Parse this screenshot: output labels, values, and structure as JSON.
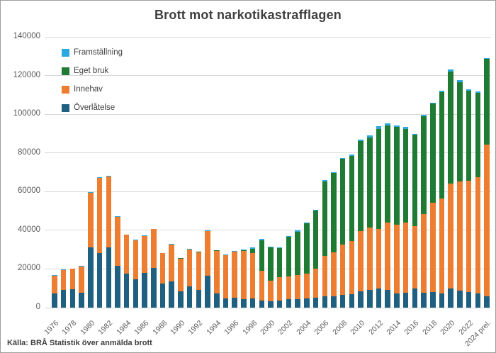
{
  "chart_data": {
    "type": "bar",
    "stacked": true,
    "title": "Brott mot narkotikastrafflagen",
    "source_note": "Källa: BRÅ Statistik över anmälda brott",
    "categories": [
      "1976",
      "1977",
      "1978",
      "1979",
      "1980",
      "1981",
      "1982",
      "1983",
      "1984",
      "1985",
      "1986",
      "1987",
      "1988",
      "1989",
      "1990",
      "1991",
      "1992",
      "1993",
      "1994",
      "1995",
      "1996",
      "1997",
      "1998",
      "1999",
      "2000",
      "2001",
      "2002",
      "2003",
      "2004",
      "2005",
      "2006",
      "2007",
      "2008",
      "2009",
      "2010",
      "2011",
      "2012",
      "2013",
      "2014",
      "2015",
      "2016",
      "2017",
      "2018",
      "2019",
      "2020",
      "2021",
      "2022",
      "2023",
      "2024 prel."
    ],
    "series": [
      {
        "name": "Överlåtelse",
        "color": "#1f5f7f",
        "values": [
          7500,
          9300,
          9700,
          7800,
          31000,
          28200,
          31100,
          21800,
          17600,
          14800,
          18000,
          20700,
          12500,
          13700,
          8400,
          10900,
          9300,
          16400,
          7200,
          4800,
          5000,
          4500,
          4700,
          3800,
          3400,
          3800,
          4500,
          4500,
          4700,
          5000,
          5800,
          6000,
          6500,
          7000,
          8500,
          9000,
          10000,
          9000,
          7200,
          7800,
          9800,
          7800,
          7900,
          7200,
          10000,
          8800,
          8000,
          7200,
          6000
        ]
      },
      {
        "name": "Innehav",
        "color": "#ed7d31",
        "values": [
          9000,
          10300,
          10300,
          13600,
          28300,
          38800,
          36700,
          25300,
          20000,
          20100,
          19200,
          19900,
          15600,
          19000,
          17000,
          19000,
          19400,
          23200,
          22300,
          22300,
          23800,
          24900,
          23400,
          15400,
          10500,
          11900,
          11800,
          12400,
          13000,
          15000,
          20800,
          22500,
          26000,
          27500,
          31000,
          32500,
          30700,
          35000,
          35600,
          36200,
          32500,
          40600,
          46200,
          49100,
          54100,
          56300,
          57700,
          60300,
          78200
        ]
      },
      {
        "name": "Eget bruk",
        "color": "#1f7b34",
        "values": [
          0,
          0,
          0,
          0,
          0,
          0,
          0,
          0,
          0,
          0,
          0,
          0,
          0,
          100,
          100,
          200,
          200,
          100,
          100,
          100,
          100,
          200,
          2500,
          15800,
          17200,
          15200,
          20200,
          22500,
          25900,
          30200,
          38800,
          41200,
          44300,
          44100,
          46500,
          46600,
          51800,
          50200,
          50700,
          48400,
          47000,
          50700,
          51300,
          55200,
          57900,
          51600,
          46500,
          43700,
          44500
        ]
      },
      {
        "name": "Framställning",
        "color": "#29a9e0",
        "values": [
          300,
          300,
          300,
          300,
          300,
          400,
          400,
          300,
          300,
          200,
          200,
          200,
          200,
          200,
          200,
          200,
          200,
          100,
          200,
          200,
          500,
          300,
          500,
          500,
          500,
          300,
          500,
          500,
          500,
          500,
          500,
          500,
          500,
          500,
          700,
          800,
          1200,
          1000,
          800,
          1000,
          500,
          700,
          500,
          800,
          1000,
          800,
          700,
          500,
          300
        ]
      }
    ],
    "legend": {
      "position": "top-left",
      "order": [
        "Framställning",
        "Eget bruk",
        "Innehav",
        "Överlåtelse"
      ]
    },
    "ylim": [
      0,
      140000
    ],
    "ytick_step": 20000,
    "ytick_labels": [
      "0",
      "20000",
      "40000",
      "60000",
      "80000",
      "100000",
      "120000",
      "140000"
    ],
    "xtick_every": 2,
    "grid": true,
    "gridline_color": "#d9d9d9",
    "background_color": "#ffffff"
  }
}
